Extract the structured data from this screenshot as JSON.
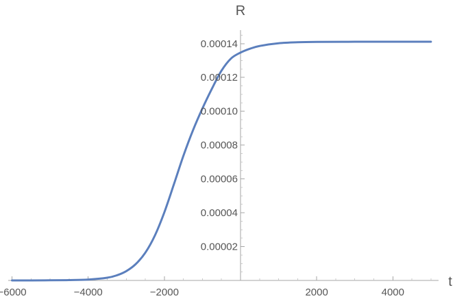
{
  "chart_data": {
    "type": "line",
    "title": "",
    "xlabel": "t",
    "ylabel": "R",
    "xlim": [
      -6100,
      5200
    ],
    "ylim": [
      0,
      0.000148
    ],
    "grid": false,
    "legend": "none",
    "x_ticks": [
      {
        "value": -6000,
        "label": "−6000"
      },
      {
        "value": -4000,
        "label": "−4000"
      },
      {
        "value": -2000,
        "label": "−2000"
      },
      {
        "value": 2000,
        "label": "2000"
      },
      {
        "value": 4000,
        "label": "4000"
      }
    ],
    "y_ticks": [
      {
        "value": 2e-05,
        "label": "0.00002"
      },
      {
        "value": 4e-05,
        "label": "0.00004"
      },
      {
        "value": 6e-05,
        "label": "0.00006"
      },
      {
        "value": 8e-05,
        "label": "0.00008"
      },
      {
        "value": 0.0001,
        "label": "0.00010"
      },
      {
        "value": 0.00012,
        "label": "0.00012"
      },
      {
        "value": 0.00014,
        "label": "0.00014"
      }
    ],
    "series": [
      {
        "color": "#5b7fbd",
        "x": [
          -6000,
          -5500,
          -5000,
          -4500,
          -4000,
          -3500,
          -3250,
          -3000,
          -2750,
          -2500,
          -2250,
          -2000,
          -1750,
          -1500,
          -1250,
          -1000,
          -750,
          -500,
          -250,
          0,
          250,
          500,
          1000,
          1500,
          2000,
          3000,
          4000,
          5000
        ],
        "y": [
          0.0,
          0.0,
          1e-07,
          2e-07,
          5e-07,
          1.6e-06,
          3e-06,
          5.5e-06,
          9.7e-06,
          1.64e-05,
          2.65e-05,
          4.03e-05,
          5.68e-05,
          7.37e-05,
          8.87e-05,
          0.0001017,
          0.0001134,
          0.000124,
          0.0001312,
          0.0001347,
          0.000137,
          0.0001386,
          0.0001402,
          0.0001408,
          0.000141,
          0.0001411,
          0.0001411,
          0.0001411
        ]
      }
    ]
  }
}
